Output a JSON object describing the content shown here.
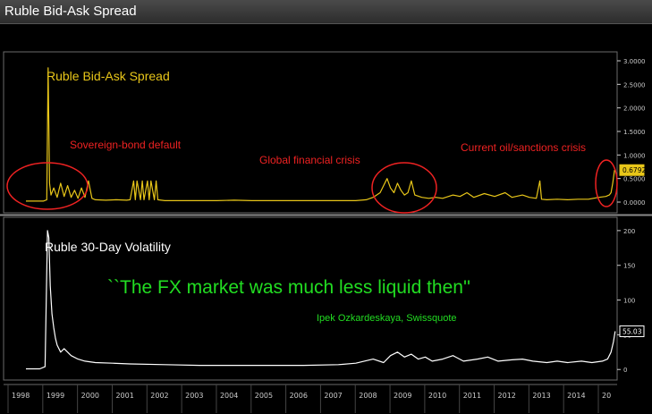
{
  "window_title": "Ruble Bid-Ask Spread",
  "colors": {
    "spread": "#e8c619",
    "volatility": "#ffffff",
    "annotation": "#ee2222",
    "quote": "#22dd22",
    "axis": "#cccccc",
    "panel_border": "#6a6a6a"
  },
  "chart_data": [
    {
      "type": "line",
      "title": "Ruble Bid-Ask Spread",
      "x_range": [
        1998.0,
        2015.0
      ],
      "ylim": [
        0,
        3.0
      ],
      "yticks": [
        0.0,
        0.5,
        1.0,
        1.5,
        2.0,
        2.5,
        3.0
      ],
      "ytick_labels": [
        "0.0000",
        "0.5000",
        "1.0000",
        "1.5000",
        "2.0000",
        "2.5000",
        "3.0000"
      ],
      "last_value_label": "0.6792",
      "last_value": 0.6792,
      "annotations": [
        "Sovereign-bond default",
        "Global financial crisis",
        "Current oil/sanctions crisis"
      ],
      "series": [
        {
          "x": [
            1998.0,
            1998.5,
            1998.6,
            1998.64,
            1998.68,
            1998.72,
            1998.8,
            1998.9,
            1999.0,
            1999.1,
            1999.2,
            1999.3,
            1999.4,
            1999.5,
            1999.6,
            1999.7,
            1999.8,
            1999.9,
            2000.0,
            2000.3,
            2000.6,
            2000.9,
            2001.0,
            2001.1,
            2001.15,
            2001.2,
            2001.3,
            2001.35,
            2001.4,
            2001.5,
            2001.55,
            2001.6,
            2001.7,
            2001.75,
            2001.8,
            2001.9,
            2002.0,
            2002.5,
            2003.0,
            2003.5,
            2004.0,
            2004.5,
            2005.0,
            2005.5,
            2006.0,
            2006.5,
            2007.0,
            2007.5,
            2007.8,
            2008.0,
            2008.2,
            2008.4,
            2008.5,
            2008.6,
            2008.7,
            2008.8,
            2008.9,
            2009.0,
            2009.1,
            2009.2,
            2009.4,
            2009.6,
            2009.8,
            2010.0,
            2010.3,
            2010.5,
            2010.7,
            2010.9,
            2011.2,
            2011.5,
            2011.8,
            2012.0,
            2012.3,
            2012.5,
            2012.7,
            2012.8,
            2012.85,
            2013.0,
            2013.3,
            2013.6,
            2013.9,
            2014.2,
            2014.5,
            2014.7,
            2014.8,
            2014.85,
            2014.9,
            2014.95
          ],
          "y": [
            0.02,
            0.02,
            0.05,
            2.85,
            0.4,
            0.15,
            0.3,
            0.1,
            0.4,
            0.12,
            0.35,
            0.1,
            0.25,
            0.08,
            0.3,
            0.1,
            0.45,
            0.08,
            0.05,
            0.04,
            0.05,
            0.04,
            0.05,
            0.45,
            0.05,
            0.45,
            0.05,
            0.45,
            0.05,
            0.45,
            0.05,
            0.45,
            0.05,
            0.45,
            0.05,
            0.04,
            0.03,
            0.03,
            0.03,
            0.03,
            0.04,
            0.03,
            0.03,
            0.03,
            0.03,
            0.03,
            0.03,
            0.03,
            0.05,
            0.1,
            0.2,
            0.5,
            0.3,
            0.2,
            0.4,
            0.25,
            0.15,
            0.2,
            0.45,
            0.15,
            0.1,
            0.08,
            0.1,
            0.08,
            0.15,
            0.12,
            0.2,
            0.1,
            0.18,
            0.12,
            0.2,
            0.1,
            0.15,
            0.1,
            0.08,
            0.45,
            0.06,
            0.05,
            0.06,
            0.05,
            0.06,
            0.06,
            0.1,
            0.12,
            0.15,
            0.2,
            0.4,
            0.6792
          ]
        }
      ]
    },
    {
      "type": "line",
      "title": "Ruble 30-Day Volatility",
      "x_range": [
        1998.0,
        2015.0
      ],
      "ylim": [
        -10,
        205
      ],
      "yticks": [
        0,
        50,
        100,
        150,
        200
      ],
      "ytick_labels": [
        "0",
        "50",
        "100",
        "150",
        "200"
      ],
      "last_value_label": "55.03",
      "last_value": 55.03,
      "quote": "``The FX market was much less liquid then''",
      "quote_author": "Ipek Ozkardeskaya, Swissquote",
      "series": [
        {
          "x": [
            1998.0,
            1998.4,
            1998.55,
            1998.62,
            1998.66,
            1998.7,
            1998.75,
            1998.8,
            1998.85,
            1998.9,
            1999.0,
            1999.1,
            1999.3,
            1999.5,
            1999.7,
            2000.0,
            2000.5,
            2001.0,
            2002.0,
            2003.0,
            2004.0,
            2005.0,
            2006.0,
            2007.0,
            2007.5,
            2008.0,
            2008.3,
            2008.5,
            2008.7,
            2008.9,
            2009.1,
            2009.3,
            2009.5,
            2009.7,
            2010.0,
            2010.3,
            2010.6,
            2011.0,
            2011.3,
            2011.6,
            2012.0,
            2012.3,
            2012.6,
            2013.0,
            2013.3,
            2013.6,
            2014.0,
            2014.3,
            2014.6,
            2014.75,
            2014.85,
            2014.92,
            2014.97
          ],
          "y": [
            1,
            1,
            4,
            200,
            190,
            120,
            80,
            60,
            45,
            35,
            25,
            30,
            20,
            15,
            12,
            10,
            9,
            8,
            7,
            6,
            6,
            6,
            6,
            7,
            9,
            15,
            10,
            20,
            25,
            18,
            22,
            15,
            18,
            12,
            15,
            20,
            12,
            15,
            18,
            12,
            14,
            15,
            12,
            10,
            12,
            10,
            12,
            10,
            12,
            15,
            25,
            40,
            55.03
          ]
        }
      ]
    }
  ],
  "x_axis": {
    "labels": [
      "1998",
      "1999",
      "2000",
      "2001",
      "2002",
      "2003",
      "2004",
      "2005",
      "2006",
      "2007",
      "2008",
      "2009",
      "2010",
      "2011",
      "2012",
      "2013",
      "2014",
      "20"
    ]
  }
}
